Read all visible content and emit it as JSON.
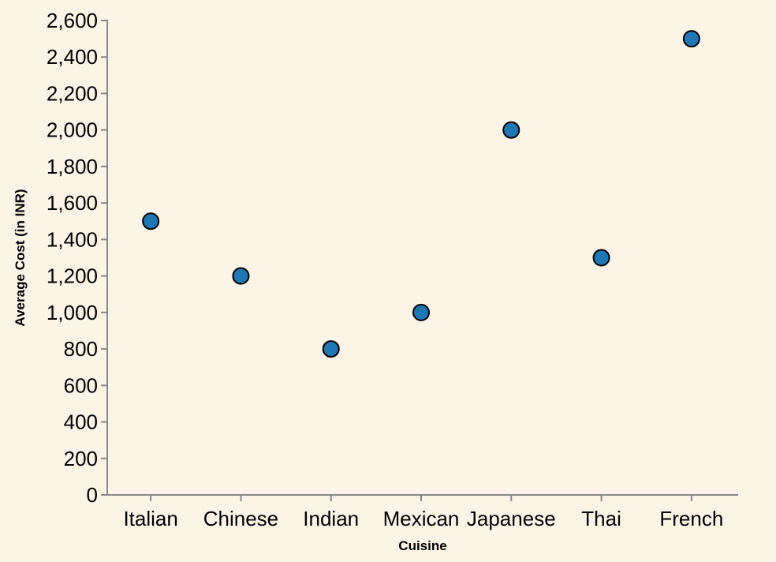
{
  "chart_data": {
    "type": "scatter",
    "title": "",
    "xlabel": "Cuisine",
    "ylabel": "Average Cost (in INR)",
    "categories": [
      "Italian",
      "Chinese",
      "Indian",
      "Mexican",
      "Japanese",
      "Thai",
      "French"
    ],
    "series": [
      {
        "values": [
          1500,
          1200,
          800,
          1000,
          2000,
          1300,
          2500
        ]
      }
    ],
    "ylim": [
      0,
      2600
    ],
    "yticks": [
      0,
      200,
      400,
      600,
      800,
      1000,
      1200,
      1400,
      1600,
      1800,
      2000,
      2200,
      2400,
      2600
    ],
    "ytick_labels": [
      "0",
      "200",
      "400",
      "600",
      "800",
      "1,000",
      "1,200",
      "1,400",
      "1,600",
      "1,800",
      "2,000",
      "2,200",
      "2,400",
      "2,600"
    ],
    "grid": false,
    "colors": {
      "background": "#fdf3e6",
      "point_fill": "#1f77b4",
      "point_stroke": "#000000",
      "axis": "#888888"
    }
  }
}
